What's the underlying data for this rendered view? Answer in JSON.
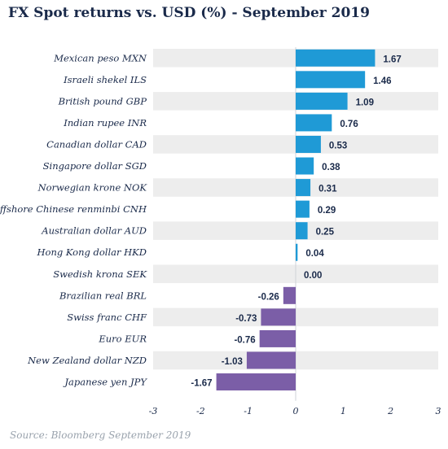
{
  "title": "FX Spot returns vs. USD (%) - September 2019",
  "source": "Source: Bloomberg September 2019",
  "colors": {
    "positive": "#1f9ad6",
    "negative": "#7b5ea7",
    "band": "#ededed",
    "text": "#1a2a4a"
  },
  "chart_data": {
    "type": "bar",
    "orientation": "horizontal",
    "title": "FX Spot returns vs. USD (%) - September 2019",
    "xlabel": "",
    "ylabel": "",
    "xlim": [
      -3,
      3
    ],
    "xticks": [
      -3,
      -2,
      -1,
      0,
      1,
      2,
      3
    ],
    "categories": [
      "Mexican peso MXN",
      "Israeli shekel ILS",
      "British pound GBP",
      "Indian rupee INR",
      "Canadian dollar CAD",
      "Singapore dollar SGD",
      "Norwegian krone NOK",
      "Offshore Chinese renminbi CNH",
      "Australian dollar AUD",
      "Hong Kong dollar HKD",
      "Swedish krona SEK",
      "Brazilian real BRL",
      "Swiss franc CHF",
      "Euro EUR",
      "New Zealand dollar NZD",
      "Japanese yen JPY"
    ],
    "values": [
      1.67,
      1.46,
      1.09,
      0.76,
      0.53,
      0.38,
      0.31,
      0.29,
      0.25,
      0.04,
      0.0,
      -0.26,
      -0.73,
      -0.76,
      -1.03,
      -1.67
    ],
    "value_labels": [
      "1.67",
      "1.46",
      "1.09",
      "0.76",
      "0.53",
      "0.38",
      "0.31",
      "0.29",
      "0.25",
      "0.04",
      "0.00",
      "-0.26",
      "-0.73",
      "-0.76",
      "-1.03",
      "-1.67"
    ],
    "grid": false,
    "legend": "none"
  }
}
